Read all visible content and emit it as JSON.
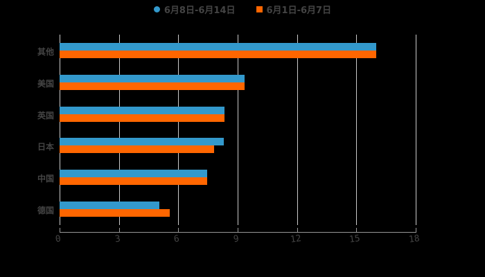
{
  "chart_data": {
    "type": "bar",
    "orientation": "horizontal",
    "title": "",
    "categories": [
      "其他",
      "美国",
      "英国",
      "日本",
      "中国",
      "德国"
    ],
    "series": [
      {
        "name": "6月8日-6月14日",
        "color": "#3399CC",
        "values": [
          16.0,
          9.35,
          8.33,
          8.3,
          7.46,
          5.04
        ]
      },
      {
        "name": "6月1日-6月7日",
        "color": "#FF6600",
        "values": [
          16.0,
          9.35,
          8.33,
          7.8,
          7.46,
          5.57
        ]
      }
    ],
    "xlabel": "",
    "ylabel": "",
    "xlim": [
      0,
      18
    ],
    "xticks": [
      "0",
      "3",
      "6",
      "9",
      "12",
      "15",
      "18"
    ],
    "grid": true,
    "legend_position": "top"
  },
  "legend": {
    "items": [
      {
        "label": "6月8日-6月14日",
        "color": "#3399CC",
        "shape": "circle"
      },
      {
        "label": "6月1日-6月7日",
        "color": "#FF6600",
        "shape": "square"
      }
    ]
  }
}
